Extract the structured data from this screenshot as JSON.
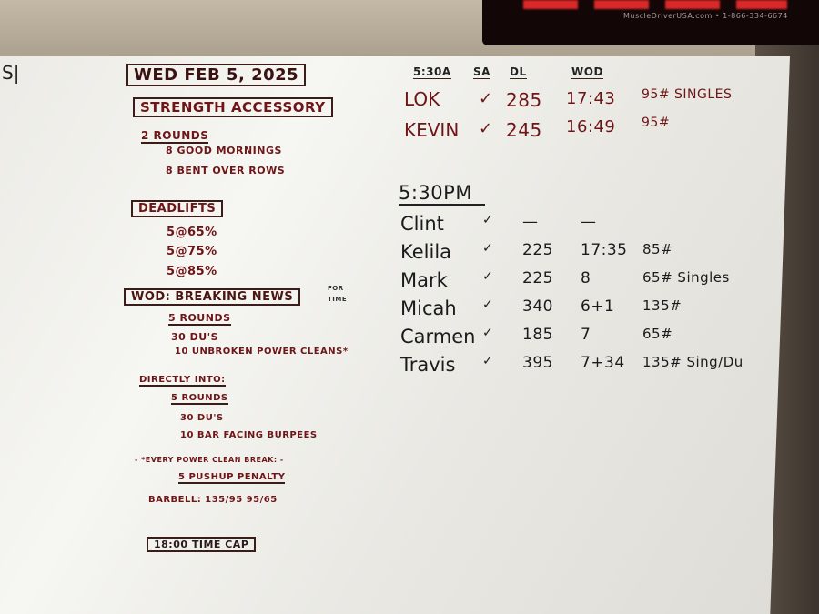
{
  "timer": {
    "brand": "MuscleDriverUSA.com • 1-866-334-6674"
  },
  "edge_mark": "S|",
  "left": {
    "date": "WED FEB 5, 2025",
    "strength_title": "STRENGTH ACCESSORY",
    "strength_rounds": "2 ROUNDS",
    "strength_items": [
      "8 GOOD MORNINGS",
      "8 BENT OVER ROWS"
    ],
    "deadlifts_title": "DEADLIFTS",
    "deadlifts_sets": [
      "5@65%",
      "5@75%",
      "5@85%"
    ],
    "wod_title": "WOD: BREAKING NEWS",
    "wod_note": [
      "FOR",
      "TIME"
    ],
    "wod_rounds": "5 ROUNDS",
    "wod_items": [
      "30 DU's",
      "10 UNBROKEN POWER CLEANS*"
    ],
    "directly_into": "DIRECTLY INTO:",
    "part2_rounds": "5 ROUNDS",
    "part2_items": [
      "30 DU's",
      "10 BAR FACING BURPEES"
    ],
    "penalty_note": "- *EVERY POWER CLEAN BREAK: -",
    "penalty": "5 PUSHUP PENALTY",
    "barbell": "BARBELL: 135/95  95/65",
    "time_cap": "18:00 TIME CAP"
  },
  "right": {
    "am_headers": [
      "5:30A",
      "SA",
      "DL",
      "WOD"
    ],
    "am_rows": [
      {
        "name": "LOK",
        "sa": "✓",
        "dl": "285",
        "wod": "17:43",
        "load": "95# SINGLES"
      },
      {
        "name": "KEVIN",
        "sa": "✓",
        "dl": "245",
        "wod": "16:49",
        "load": "95#"
      }
    ],
    "pm_header": "5:30PM",
    "pm_rows": [
      {
        "name": "Clint",
        "sa": "✓",
        "dl": "—",
        "wod": "—",
        "load": ""
      },
      {
        "name": "Kelila",
        "sa": "✓",
        "dl": "225",
        "wod": "17:35",
        "load": "85#"
      },
      {
        "name": "Mark",
        "sa": "✓",
        "dl": "225",
        "wod": "8",
        "load": "65# Singles"
      },
      {
        "name": "Micah",
        "sa": "✓",
        "dl": "340",
        "wod": "6+1",
        "load": "135#"
      },
      {
        "name": "Carmen",
        "sa": "✓",
        "dl": "185",
        "wod": "7",
        "load": "65#"
      },
      {
        "name": "Travis",
        "sa": "✓",
        "dl": "395",
        "wod": "7+34",
        "load": "135# Sing/Du"
      }
    ]
  },
  "colors": {
    "maroon_marker": "#6e1518",
    "black_marker": "#1b1b1b"
  }
}
